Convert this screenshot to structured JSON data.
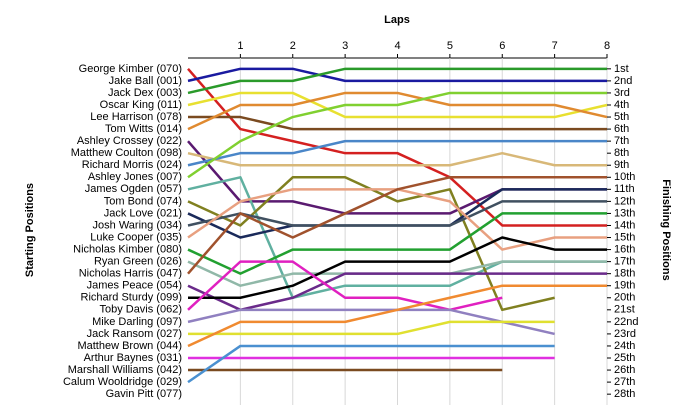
{
  "chart_data": {
    "type": "line",
    "title": "Laps",
    "ylabel": "Starting Positions",
    "y2label": "Finishing Positions",
    "x": [
      0,
      1,
      2,
      3,
      4,
      5,
      6,
      7,
      8
    ],
    "xlim": [
      0,
      8
    ],
    "xticks": [
      1,
      2,
      3,
      4,
      5,
      6,
      7,
      8
    ],
    "ylim": [
      28.9,
      0.1
    ],
    "yticks": [
      {
        "value": 1,
        "label": "1st"
      },
      {
        "value": 2,
        "label": "2nd"
      },
      {
        "value": 3,
        "label": "3rd"
      },
      {
        "value": 4,
        "label": "4th"
      },
      {
        "value": 5,
        "label": "5th"
      },
      {
        "value": 6,
        "label": "6th"
      },
      {
        "value": 7,
        "label": "7th"
      },
      {
        "value": 8,
        "label": "8th"
      },
      {
        "value": 9,
        "label": "9th"
      },
      {
        "value": 10,
        "label": "10th"
      },
      {
        "value": 11,
        "label": "11th"
      },
      {
        "value": 12,
        "label": "12th"
      },
      {
        "value": 13,
        "label": "13th"
      },
      {
        "value": 14,
        "label": "14th"
      },
      {
        "value": 15,
        "label": "15th"
      },
      {
        "value": 16,
        "label": "16th"
      },
      {
        "value": 17,
        "label": "17th"
      },
      {
        "value": 18,
        "label": "18th"
      },
      {
        "value": 19,
        "label": "19th"
      },
      {
        "value": 20,
        "label": "20th"
      },
      {
        "value": 21,
        "label": "21st"
      },
      {
        "value": 22,
        "label": "22nd"
      },
      {
        "value": 23,
        "label": "23rd"
      },
      {
        "value": 24,
        "label": "24th"
      },
      {
        "value": 25,
        "label": "25th"
      },
      {
        "value": 26,
        "label": "26th"
      },
      {
        "value": 27,
        "label": "27th"
      },
      {
        "value": 28,
        "label": "28th"
      }
    ],
    "grid": true,
    "series": [
      {
        "name": "George Kimber (070)",
        "color": "#d42020",
        "values": [
          1,
          6,
          7,
          8,
          8,
          10,
          14,
          14,
          14
        ]
      },
      {
        "name": "Jake Ball (001)",
        "color": "#1a1aa0",
        "values": [
          2,
          1,
          1,
          2,
          2,
          2,
          2,
          2,
          2
        ]
      },
      {
        "name": "Jack Dex (003)",
        "color": "#2a9a2a",
        "values": [
          3,
          2,
          2,
          1,
          1,
          1,
          1,
          1,
          1
        ]
      },
      {
        "name": "Oscar King (011)",
        "color": "#e8e030",
        "values": [
          4,
          3,
          3,
          5,
          5,
          5,
          5,
          5,
          4
        ]
      },
      {
        "name": "Lee Harrison (078)",
        "color": "#7a4a20",
        "values": [
          5,
          5,
          6,
          6,
          6,
          6,
          6,
          6,
          6
        ]
      },
      {
        "name": "Tom Witts (014)",
        "color": "#e08a30",
        "values": [
          6,
          4,
          4,
          3,
          3,
          4,
          4,
          4,
          5
        ]
      },
      {
        "name": "Ashley Crossey (022)",
        "color": "#5a1a70",
        "values": [
          7,
          12,
          12,
          13,
          13,
          13,
          11,
          11,
          11
        ]
      },
      {
        "name": "Matthew Coulton (098)",
        "color": "#d8b878",
        "values": [
          8,
          9,
          9,
          9,
          9,
          9,
          8,
          9,
          9
        ]
      },
      {
        "name": "Richard Morris (024)",
        "color": "#4a86c8",
        "values": [
          9,
          8,
          8,
          7,
          7,
          7,
          7,
          7,
          7
        ]
      },
      {
        "name": "Ashley Jones (007)",
        "color": "#80d030",
        "values": [
          10,
          7,
          5,
          4,
          4,
          3,
          3,
          3,
          3
        ]
      },
      {
        "name": "James Ogden (057)",
        "color": "#60b0a0",
        "values": [
          11,
          10,
          20,
          19,
          19,
          19,
          17,
          17,
          17
        ]
      },
      {
        "name": "Tom Bond (074)",
        "color": "#808020",
        "values": [
          12,
          14,
          10,
          10,
          12,
          11,
          21,
          20,
          null
        ]
      },
      {
        "name": "Jack Love (021)",
        "color": "#1a2a5a",
        "values": [
          13,
          15,
          14,
          14,
          14,
          14,
          11,
          11,
          11
        ]
      },
      {
        "name": "Josh Waring (034)",
        "color": "#405060",
        "values": [
          14,
          13,
          14,
          14,
          14,
          14,
          12,
          12,
          12
        ]
      },
      {
        "name": "Luke Cooper (035)",
        "color": "#e8a080",
        "values": [
          15,
          12,
          11,
          11,
          11,
          12,
          16,
          15,
          15
        ]
      },
      {
        "name": "Nicholas Kimber (080)",
        "color": "#22a030",
        "values": [
          16,
          18,
          16,
          16,
          16,
          16,
          13,
          13,
          13
        ]
      },
      {
        "name": "Ryan Green (026)",
        "color": "#90b8a8",
        "values": [
          17,
          19,
          18,
          18,
          18,
          18,
          17,
          17,
          17
        ]
      },
      {
        "name": "Nicholas Harris (047)",
        "color": "#a0522d",
        "values": [
          18,
          13,
          15,
          13,
          11,
          10,
          10,
          10,
          10
        ]
      },
      {
        "name": "James Peace (054)",
        "color": "#6a2a8a",
        "values": [
          19,
          21,
          20,
          18,
          18,
          18,
          18,
          18,
          18
        ]
      },
      {
        "name": "Richard Sturdy (099)",
        "color": "#000000",
        "values": [
          20,
          20,
          19,
          17,
          17,
          17,
          15,
          16,
          16
        ]
      },
      {
        "name": "Toby Davis (062)",
        "color": "#e020c0",
        "values": [
          21,
          17,
          17,
          20,
          20,
          21,
          20,
          null,
          null
        ]
      },
      {
        "name": "Mike Darling (097)",
        "color": "#9080c0",
        "values": [
          22,
          21,
          21,
          21,
          21,
          21,
          22,
          23,
          null
        ]
      },
      {
        "name": "Jack Ransom (027)",
        "color": "#e0e030",
        "values": [
          23,
          23,
          23,
          23,
          23,
          22,
          22,
          22,
          null
        ]
      },
      {
        "name": "Matthew Brown (044)",
        "color": "#f08a30",
        "values": [
          24,
          22,
          22,
          22,
          21,
          20,
          19,
          19,
          19
        ]
      },
      {
        "name": "Arthur Baynes (031)",
        "color": "#e030e0",
        "values": [
          25,
          25,
          25,
          25,
          25,
          25,
          25,
          25,
          null
        ]
      },
      {
        "name": "Marshall Williams (042)",
        "color": "#7a4a20",
        "values": [
          26,
          26,
          26,
          26,
          26,
          26,
          26,
          null,
          null
        ]
      },
      {
        "name": "Calum Wooldridge (029)",
        "color": "#4a90d0",
        "values": [
          27,
          24,
          24,
          24,
          24,
          24,
          24,
          24,
          null
        ]
      },
      {
        "name": "Gavin Pitt (077)",
        "color": "#888888",
        "values": [
          28,
          null,
          null,
          null,
          null,
          null,
          null,
          null,
          null
        ]
      }
    ]
  }
}
